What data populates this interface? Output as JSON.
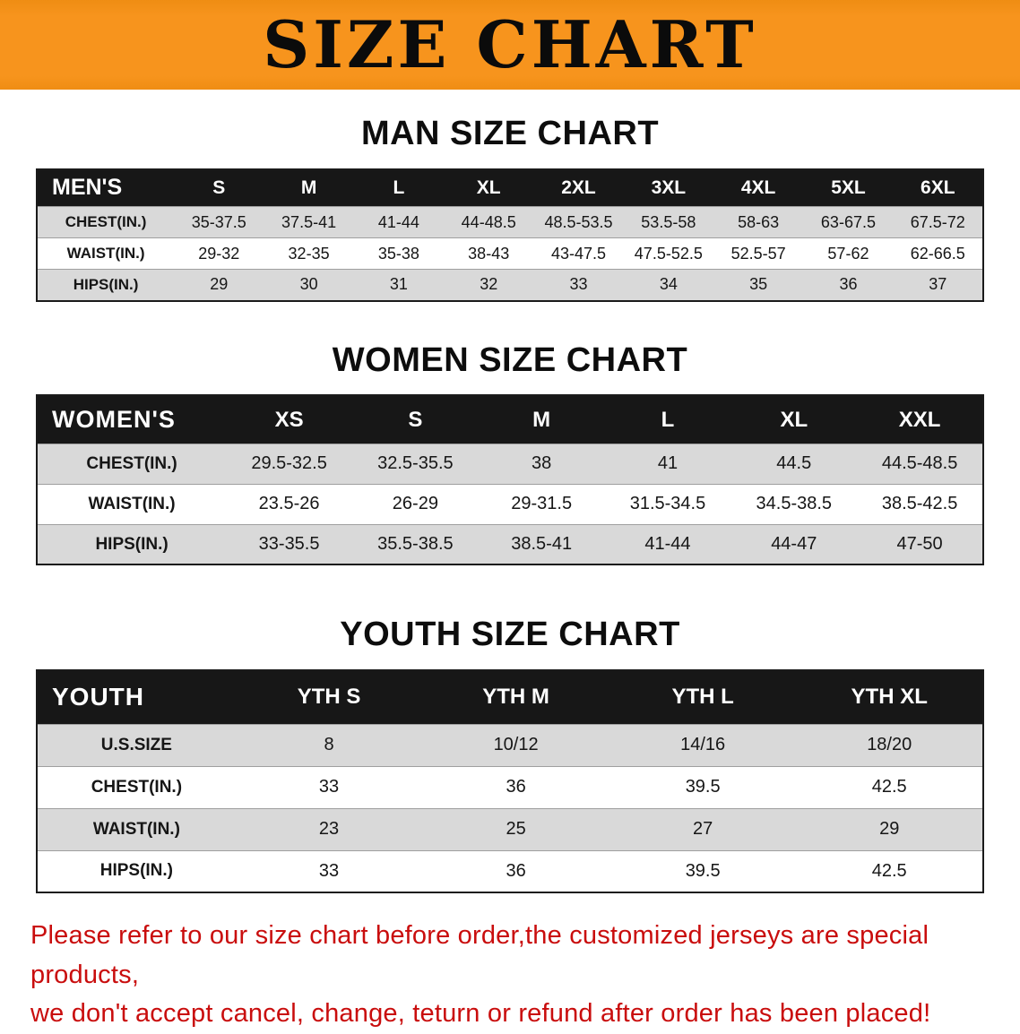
{
  "banner": {
    "title": "SIZE CHART"
  },
  "colors": {
    "banner_bg": "#f7941d",
    "table_header_bg": "#171717",
    "row_alt_bg": "#d9d9d9",
    "note_text": "#c90d0d"
  },
  "sections": [
    {
      "heading": "MAN SIZE CHART",
      "table": {
        "header": [
          "MEN'S",
          "S",
          "M",
          "L",
          "XL",
          "2XL",
          "3XL",
          "4XL",
          "5XL",
          "6XL"
        ],
        "rows": [
          [
            "CHEST(IN.)",
            "35-37.5",
            "37.5-41",
            "41-44",
            "44-48.5",
            "48.5-53.5",
            "53.5-58",
            "58-63",
            "63-67.5",
            "67.5-72"
          ],
          [
            "WAIST(IN.)",
            "29-32",
            "32-35",
            "35-38",
            "38-43",
            "43-47.5",
            "47.5-52.5",
            "52.5-57",
            "57-62",
            "62-66.5"
          ],
          [
            "HIPS(IN.)",
            "29",
            "30",
            "31",
            "32",
            "33",
            "34",
            "35",
            "36",
            "37"
          ]
        ]
      }
    },
    {
      "heading": "WOMEN SIZE CHART",
      "table": {
        "header": [
          "WOMEN'S",
          "XS",
          "S",
          "M",
          "L",
          "XL",
          "XXL"
        ],
        "rows": [
          [
            "CHEST(IN.)",
            "29.5-32.5",
            "32.5-35.5",
            "38",
            "41",
            "44.5",
            "44.5-48.5"
          ],
          [
            "WAIST(IN.)",
            "23.5-26",
            "26-29",
            "29-31.5",
            "31.5-34.5",
            "34.5-38.5",
            "38.5-42.5"
          ],
          [
            "HIPS(IN.)",
            "33-35.5",
            "35.5-38.5",
            "38.5-41",
            "41-44",
            "44-47",
            "47-50"
          ]
        ]
      }
    },
    {
      "heading": "YOUTH SIZE CHART",
      "table": {
        "header": [
          "YOUTH",
          "YTH S",
          "YTH M",
          "YTH L",
          "YTH XL"
        ],
        "rows": [
          [
            "U.S.SIZE",
            "8",
            "10/12",
            "14/16",
            "18/20"
          ],
          [
            "CHEST(IN.)",
            "33",
            "36",
            "39.5",
            "42.5"
          ],
          [
            "WAIST(IN.)",
            "23",
            "25",
            "27",
            "29"
          ],
          [
            "HIPS(IN.)",
            "33",
            "36",
            "39.5",
            "42.5"
          ]
        ]
      }
    }
  ],
  "footer": {
    "line1": "Please refer to our size chart before order,the customized jerseys are special products,",
    "line2": "we don't accept cancel, change, teturn or refund after order has been placed!"
  }
}
